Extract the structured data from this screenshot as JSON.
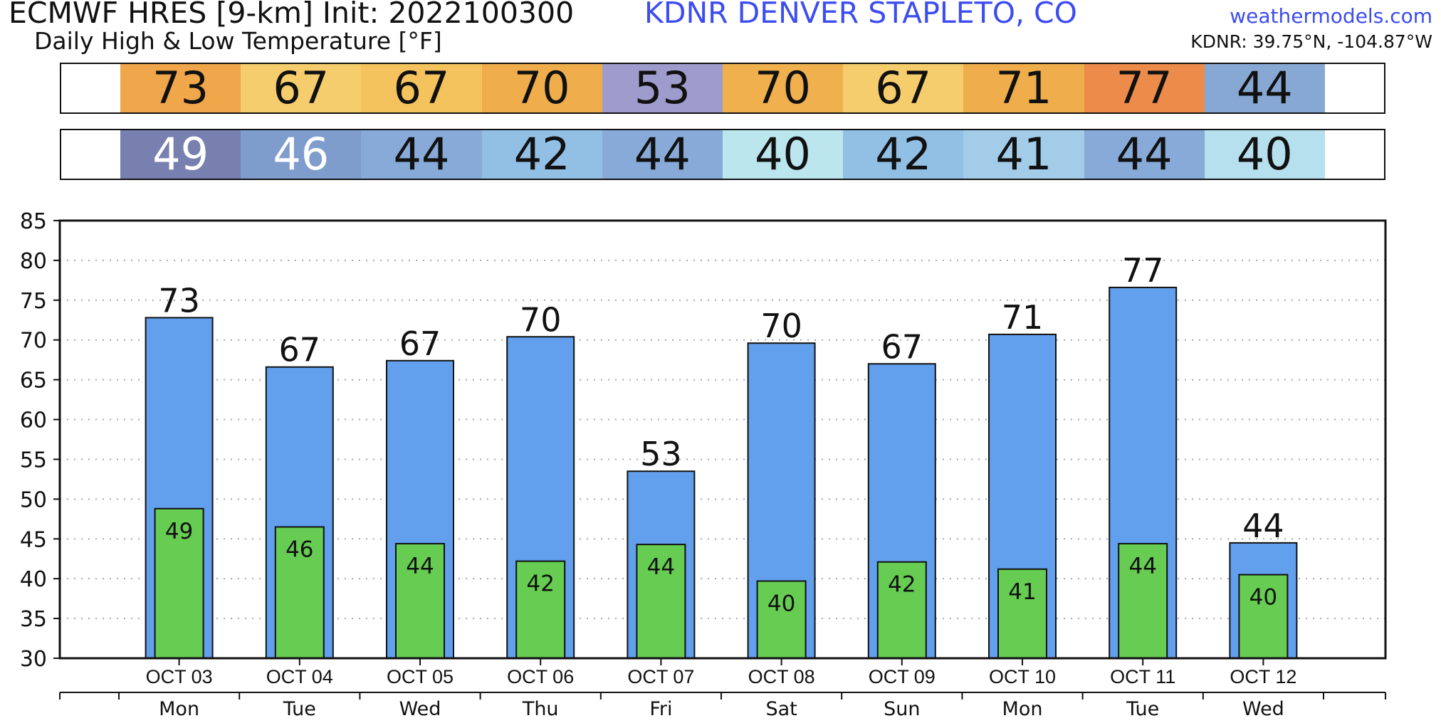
{
  "header": {
    "title": "ECMWF HRES [9-km] Init: 2022100300",
    "subtitle": "Daily High & Low Temperature [°F]",
    "station": "KDNR DENVER STAPLETO, CO",
    "site": "weathermodels.com",
    "coords": "KDNR: 39.75°N, -104.87°W"
  },
  "strips": {
    "high": [
      {
        "text": "73",
        "bg": "#f0a64a",
        "fg": "#111111"
      },
      {
        "text": "67",
        "bg": "#f5cd6c",
        "fg": "#111111"
      },
      {
        "text": "67",
        "bg": "#f5c35e",
        "fg": "#111111"
      },
      {
        "text": "70",
        "bg": "#f0ad4c",
        "fg": "#111111"
      },
      {
        "text": "53",
        "bg": "#9e9ccc",
        "fg": "#111111"
      },
      {
        "text": "70",
        "bg": "#f0b04e",
        "fg": "#111111"
      },
      {
        "text": "67",
        "bg": "#f5cd6c",
        "fg": "#111111"
      },
      {
        "text": "71",
        "bg": "#f0ad4c",
        "fg": "#111111"
      },
      {
        "text": "77",
        "bg": "#ec8b4a",
        "fg": "#111111"
      },
      {
        "text": "44",
        "bg": "#88a8d4",
        "fg": "#111111"
      }
    ],
    "low": [
      {
        "text": "49",
        "bg": "#7880b0",
        "fg": "#ffffff"
      },
      {
        "text": "46",
        "bg": "#7e9ccc",
        "fg": "#ffffff"
      },
      {
        "text": "44",
        "bg": "#88aad8",
        "fg": "#111111"
      },
      {
        "text": "42",
        "bg": "#92bfe4",
        "fg": "#111111"
      },
      {
        "text": "44",
        "bg": "#88aad8",
        "fg": "#111111"
      },
      {
        "text": "40",
        "bg": "#bce6ee",
        "fg": "#111111"
      },
      {
        "text": "42",
        "bg": "#92bfe4",
        "fg": "#111111"
      },
      {
        "text": "41",
        "bg": "#a2cce8",
        "fg": "#111111"
      },
      {
        "text": "44",
        "bg": "#88aad8",
        "fg": "#111111"
      },
      {
        "text": "40",
        "bg": "#b6e0ee",
        "fg": "#111111"
      }
    ]
  },
  "chart_data": {
    "type": "bar",
    "categories": [
      "OCT 03",
      "OCT 04",
      "OCT 05",
      "OCT 06",
      "OCT 07",
      "OCT 08",
      "OCT 09",
      "OCT 10",
      "OCT 11",
      "OCT 12"
    ],
    "days": [
      "Mon",
      "Tue",
      "Wed",
      "Thu",
      "Fri",
      "Sat",
      "Sun",
      "Mon",
      "Tue",
      "Wed"
    ],
    "series": [
      {
        "values": [
          72.8,
          66.6,
          67.4,
          70.4,
          53.5,
          69.6,
          67.0,
          70.7,
          76.6,
          44.5
        ],
        "labels": [
          "73",
          "67",
          "67",
          "70",
          "53",
          "70",
          "67",
          "71",
          "77",
          "44"
        ],
        "color": "#629fec"
      },
      {
        "values": [
          48.8,
          46.5,
          44.4,
          42.2,
          44.3,
          39.7,
          42.1,
          41.2,
          44.4,
          40.5
        ],
        "labels": [
          "49",
          "46",
          "44",
          "42",
          "44",
          "40",
          "42",
          "41",
          "44",
          "40"
        ],
        "color": "#66cc52"
      }
    ],
    "ylim": [
      30,
      85
    ],
    "yticks": [
      30,
      35,
      40,
      45,
      50,
      55,
      60,
      65,
      70,
      75,
      80,
      85
    ],
    "grid": true
  }
}
